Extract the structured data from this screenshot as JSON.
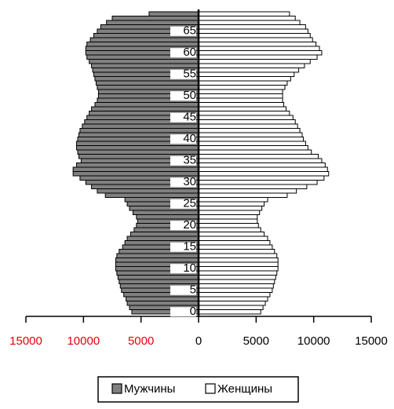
{
  "chart_data": {
    "type": "pyramid",
    "y": [
      0,
      1,
      2,
      3,
      4,
      5,
      6,
      7,
      8,
      9,
      10,
      11,
      12,
      13,
      14,
      15,
      16,
      17,
      18,
      19,
      20,
      21,
      22,
      23,
      24,
      25,
      26,
      27,
      28,
      29,
      30,
      31,
      32,
      33,
      34,
      35,
      36,
      37,
      38,
      39,
      40,
      41,
      42,
      43,
      44,
      45,
      46,
      47,
      48,
      49,
      50,
      51,
      52,
      53,
      54,
      55,
      56,
      57,
      58,
      59,
      60,
      61,
      62,
      63,
      64,
      65,
      66,
      67,
      68,
      69
    ],
    "ylim": [
      -0.5,
      69.5
    ],
    "yticks": [
      0,
      5,
      10,
      15,
      20,
      25,
      30,
      35,
      40,
      45,
      50,
      55,
      60,
      65
    ],
    "xlim": [
      -15000,
      15000
    ],
    "xticks": [
      {
        "value": -15000,
        "label": "15000"
      },
      {
        "value": -10000,
        "label": "10000"
      },
      {
        "value": -5000,
        "label": "5000"
      },
      0,
      5000,
      10000,
      15000
    ],
    "negative_tick_color": "#e8000b",
    "series": [
      {
        "name": "Мужчины",
        "color": "#808080",
        "side": "left",
        "values": [
          5800,
          6000,
          6200,
          6300,
          6500,
          6700,
          6800,
          6900,
          7000,
          7100,
          7200,
          7200,
          7200,
          7100,
          6900,
          6600,
          6400,
          6200,
          5900,
          5600,
          5400,
          5300,
          5400,
          5700,
          6000,
          6200,
          6400,
          8100,
          8800,
          9300,
          9800,
          10300,
          10900,
          10900,
          10600,
          10200,
          10400,
          10500,
          10600,
          10600,
          10500,
          10400,
          10300,
          10100,
          9900,
          9700,
          9500,
          9300,
          9000,
          8800,
          8700,
          8700,
          8800,
          8900,
          9000,
          9100,
          9200,
          9300,
          9500,
          9700,
          9800,
          9800,
          9700,
          9400,
          9100,
          8800,
          8500,
          8000,
          7500,
          4300
        ]
      },
      {
        "name": "Женщины",
        "color": "#ffffff",
        "side": "right",
        "values": [
          5400,
          5600,
          5800,
          6000,
          6200,
          6400,
          6500,
          6600,
          6700,
          6800,
          6900,
          6900,
          6900,
          6800,
          6600,
          6400,
          6200,
          6000,
          5700,
          5400,
          5200,
          5100,
          5100,
          5300,
          5500,
          5700,
          6000,
          7700,
          8500,
          9400,
          10300,
          10900,
          11300,
          11200,
          11000,
          10700,
          10400,
          9800,
          9500,
          9300,
          9100,
          9000,
          8800,
          8600,
          8400,
          8200,
          7900,
          7600,
          7400,
          7300,
          7300,
          7300,
          7500,
          7700,
          8000,
          8300,
          8700,
          9200,
          9700,
          10300,
          10700,
          10500,
          10200,
          9900,
          9700,
          9500,
          9300,
          8800,
          8400,
          7900
        ]
      }
    ]
  }
}
